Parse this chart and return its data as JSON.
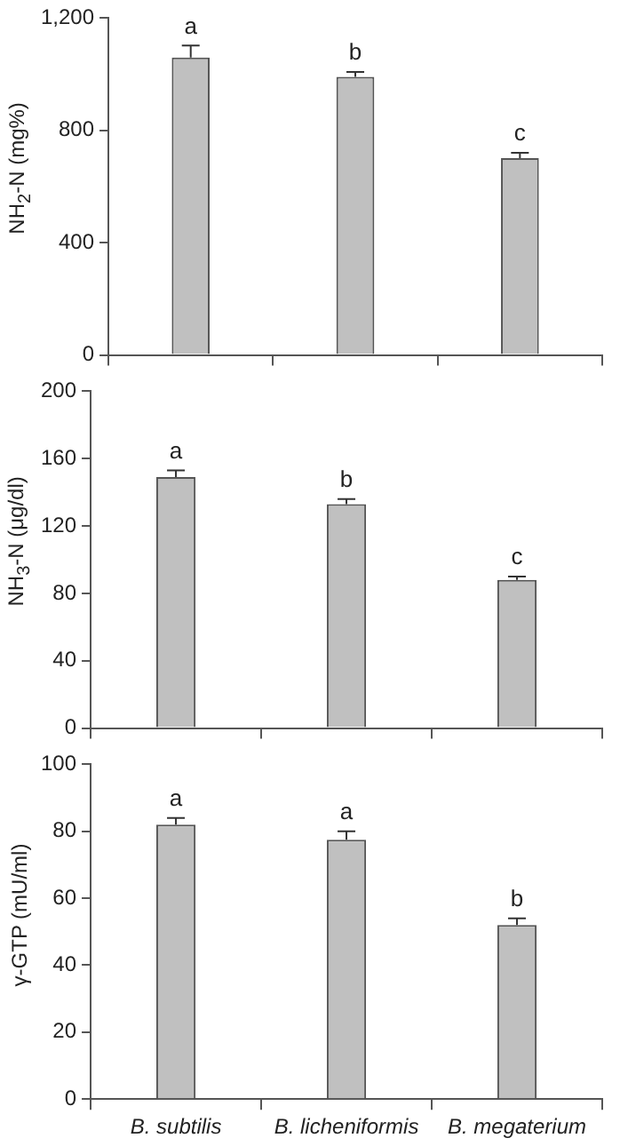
{
  "chart_data": [
    {
      "type": "bar",
      "ylabel": "NH$_{2}$-N (mg%)",
      "categories": [
        "B. subtilis",
        "B. licheniformis",
        "B. megaterium"
      ],
      "values": [
        1060,
        991,
        701
      ],
      "errors": [
        [
          1060,
          1102
        ],
        [
          991,
          1008
        ],
        [
          701,
          720
        ]
      ],
      "color": "#c0c0c0",
      "ylim": [
        0,
        1200
      ],
      "yticks": [
        0,
        400,
        800,
        {
          "value": 1200,
          "label": "1,200"
        }
      ],
      "tick_labels": "y",
      "grid": false,
      "annotations": [
        {
          "text": "a",
          "x": "B. subtilis",
          "y": 1102
        },
        {
          "text": "b",
          "x": "B. licheniformis",
          "y": 1008
        },
        {
          "text": "c",
          "x": "B. megaterium",
          "y": 720
        }
      ]
    },
    {
      "type": "bar",
      "ylabel": "NH$_{3}$-N (μg/dl)",
      "categories": [
        "B. subtilis",
        "B. licheniformis",
        "B. megaterium"
      ],
      "values": [
        149,
        133,
        88
      ],
      "errors": [
        [
          149,
          153
        ],
        [
          133,
          136
        ],
        [
          88,
          90
        ]
      ],
      "color": "#c0c0c0",
      "ylim": [
        0,
        200
      ],
      "yticks": [
        0,
        40,
        80,
        120,
        160,
        200
      ],
      "tick_labels": "y",
      "grid": false,
      "annotations": [
        {
          "text": "a",
          "x": "B. subtilis",
          "y": 153
        },
        {
          "text": "b",
          "x": "B. licheniformis",
          "y": 136
        },
        {
          "text": "c",
          "x": "B. megaterium",
          "y": 90
        }
      ]
    },
    {
      "type": "bar",
      "ylabel": "γ-GTP (mU/ml)",
      "categories": [
        "B. subtilis",
        "B. licheniformis",
        "B. megaterium"
      ],
      "values": [
        82,
        77.5,
        52
      ],
      "errors": [
        [
          82,
          84
        ],
        [
          77.5,
          80
        ],
        [
          52,
          54
        ]
      ],
      "color": "#c0c0c0",
      "ylim": [
        0,
        100
      ],
      "yticks": [
        0,
        20,
        40,
        60,
        80,
        100
      ],
      "grid": false,
      "annotations": [
        {
          "text": "a",
          "x": "B. subtilis",
          "y": 84
        },
        {
          "text": "a",
          "x": "B. licheniformis",
          "y": 80
        },
        {
          "text": "b",
          "x": "B. megaterium",
          "y": 54
        }
      ]
    }
  ]
}
